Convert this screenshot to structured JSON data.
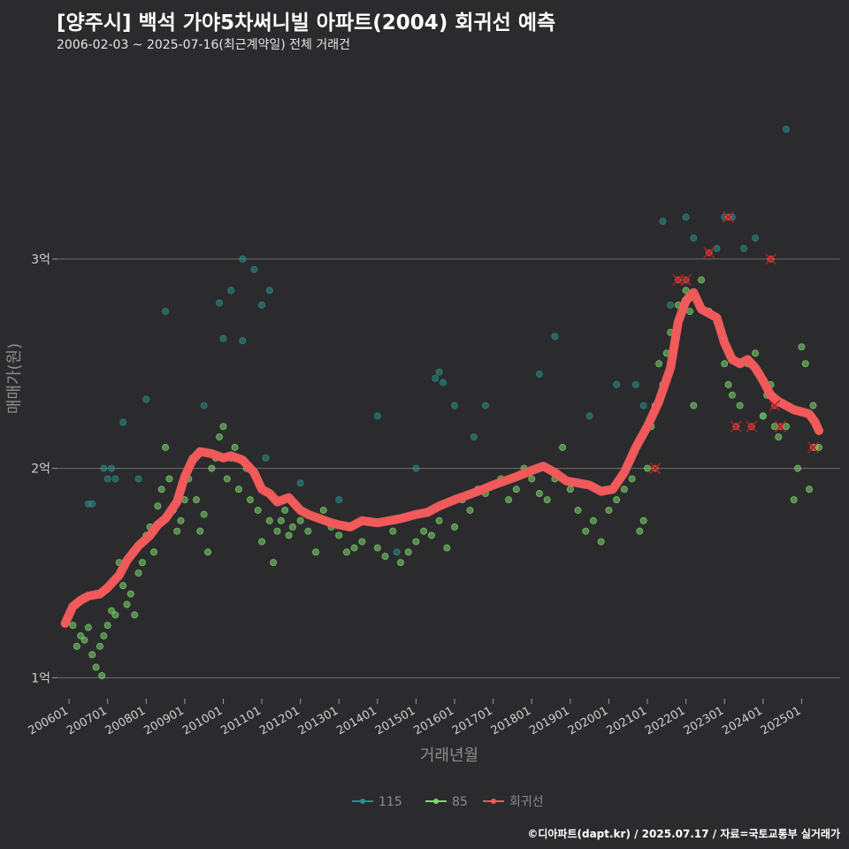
{
  "title": "[양주시] 백석 가야5차써니빌 아파트(2004) 회귀선 예측",
  "subtitle": "2006-02-03 ~ 2025-07-16(최근계약일) 전체 거래건",
  "credit": "©디아파트(dapt.kr) / 2025.07.17 / 자료=국토교통부 실거래가",
  "colors": {
    "s115": "#2a8f8a",
    "s85": "#7dd86e",
    "reg": "#f05a5a",
    "bg": "#2b2b2d",
    "grid": "#6e6e6e"
  },
  "chart_data": {
    "type": "scatter",
    "title": "[양주시] 백석 가야5차써니빌 아파트(2004) 회귀선 예측",
    "xlabel": "거래년월",
    "ylabel": "매매가(원)",
    "ylim": [
      0.9,
      3.95
    ],
    "yticks": [
      {
        "v": 1,
        "label": "1억"
      },
      {
        "v": 2,
        "label": "2억"
      },
      {
        "v": 3,
        "label": "3억"
      }
    ],
    "xlim": [
      2005.7,
      2026.0
    ],
    "xticks": [
      {
        "v": 2006,
        "label": "200601"
      },
      {
        "v": 2007,
        "label": "200701"
      },
      {
        "v": 2008,
        "label": "200801"
      },
      {
        "v": 2009,
        "label": "200901"
      },
      {
        "v": 2010,
        "label": "201001"
      },
      {
        "v": 2011,
        "label": "201101"
      },
      {
        "v": 2012,
        "label": "201201"
      },
      {
        "v": 2013,
        "label": "201301"
      },
      {
        "v": 2014,
        "label": "201401"
      },
      {
        "v": 2015,
        "label": "201501"
      },
      {
        "v": 2016,
        "label": "201601"
      },
      {
        "v": 2017,
        "label": "201701"
      },
      {
        "v": 2018,
        "label": "201801"
      },
      {
        "v": 2019,
        "label": "201901"
      },
      {
        "v": 2020,
        "label": "202001"
      },
      {
        "v": 2021,
        "label": "202101"
      },
      {
        "v": 2022,
        "label": "202201"
      },
      {
        "v": 2023,
        "label": "202301"
      },
      {
        "v": 2024,
        "label": "202401"
      },
      {
        "v": 2025,
        "label": "202501"
      }
    ],
    "legend": [
      {
        "name": "115",
        "color": "#2a8f8a"
      },
      {
        "name": "85",
        "color": "#7dd86e"
      },
      {
        "name": "회귀선",
        "color": "#f05a5a"
      }
    ],
    "series": [
      {
        "name": "115",
        "points": [
          [
            2006.5,
            1.83
          ],
          [
            2006.6,
            1.83
          ],
          [
            2006.9,
            2.0
          ],
          [
            2007.0,
            1.95
          ],
          [
            2007.1,
            2.0
          ],
          [
            2007.2,
            1.95
          ],
          [
            2007.4,
            2.22
          ],
          [
            2007.8,
            1.95
          ],
          [
            2008.0,
            2.33
          ],
          [
            2008.5,
            2.75
          ],
          [
            2009.5,
            2.3
          ],
          [
            2009.9,
            2.79
          ],
          [
            2010.0,
            2.62
          ],
          [
            2010.2,
            2.85
          ],
          [
            2010.5,
            3.0
          ],
          [
            2010.8,
            2.95
          ],
          [
            2010.5,
            2.61
          ],
          [
            2011.0,
            2.78
          ],
          [
            2011.2,
            2.85
          ],
          [
            2011.1,
            2.05
          ],
          [
            2012.0,
            1.93
          ],
          [
            2013.0,
            1.85
          ],
          [
            2014.0,
            2.25
          ],
          [
            2014.5,
            1.6
          ],
          [
            2015.0,
            2.0
          ],
          [
            2015.5,
            2.43
          ],
          [
            2015.6,
            2.46
          ],
          [
            2015.7,
            2.41
          ],
          [
            2016.0,
            2.3
          ],
          [
            2016.5,
            2.15
          ],
          [
            2016.8,
            2.3
          ],
          [
            2018.2,
            2.45
          ],
          [
            2018.6,
            2.63
          ],
          [
            2019.5,
            2.25
          ],
          [
            2020.2,
            2.4
          ],
          [
            2020.7,
            2.4
          ],
          [
            2020.9,
            2.3
          ],
          [
            2021.4,
            3.18
          ],
          [
            2021.6,
            2.78
          ],
          [
            2022.0,
            3.2
          ],
          [
            2022.2,
            3.1
          ],
          [
            2022.8,
            3.05
          ],
          [
            2023.0,
            3.2
          ],
          [
            2023.2,
            3.2
          ],
          [
            2023.5,
            3.05
          ],
          [
            2023.8,
            3.1
          ],
          [
            2024.6,
            3.62
          ],
          [
            2024.0,
            2.25
          ]
        ]
      },
      {
        "name": "85",
        "points": [
          [
            2006.1,
            1.25
          ],
          [
            2006.2,
            1.15
          ],
          [
            2006.3,
            1.2
          ],
          [
            2006.4,
            1.18
          ],
          [
            2006.5,
            1.24
          ],
          [
            2006.6,
            1.11
          ],
          [
            2006.7,
            1.05
          ],
          [
            2006.8,
            1.15
          ],
          [
            2006.85,
            1.01
          ],
          [
            2006.9,
            1.2
          ],
          [
            2007.0,
            1.25
          ],
          [
            2007.1,
            1.32
          ],
          [
            2007.2,
            1.3
          ],
          [
            2007.3,
            1.55
          ],
          [
            2007.4,
            1.44
          ],
          [
            2007.5,
            1.35
          ],
          [
            2007.6,
            1.4
          ],
          [
            2007.7,
            1.3
          ],
          [
            2007.8,
            1.5
          ],
          [
            2007.9,
            1.55
          ],
          [
            2008.0,
            1.68
          ],
          [
            2008.1,
            1.72
          ],
          [
            2008.2,
            1.6
          ],
          [
            2008.3,
            1.82
          ],
          [
            2008.4,
            1.9
          ],
          [
            2008.5,
            2.1
          ],
          [
            2008.6,
            1.95
          ],
          [
            2008.7,
            1.8
          ],
          [
            2008.8,
            1.7
          ],
          [
            2008.9,
            1.75
          ],
          [
            2009.0,
            1.85
          ],
          [
            2009.1,
            1.95
          ],
          [
            2009.2,
            2.05
          ],
          [
            2009.3,
            1.85
          ],
          [
            2009.4,
            1.7
          ],
          [
            2009.5,
            1.78
          ],
          [
            2009.6,
            1.6
          ],
          [
            2009.7,
            2.0
          ],
          [
            2009.8,
            2.05
          ],
          [
            2009.9,
            2.15
          ],
          [
            2010.0,
            2.2
          ],
          [
            2010.1,
            1.95
          ],
          [
            2010.2,
            2.05
          ],
          [
            2010.3,
            2.1
          ],
          [
            2010.4,
            1.9
          ],
          [
            2010.6,
            2.0
          ],
          [
            2010.7,
            1.85
          ],
          [
            2010.9,
            1.8
          ],
          [
            2011.0,
            1.65
          ],
          [
            2011.2,
            1.75
          ],
          [
            2011.3,
            1.55
          ],
          [
            2011.4,
            1.7
          ],
          [
            2011.5,
            1.75
          ],
          [
            2011.6,
            1.8
          ],
          [
            2011.7,
            1.68
          ],
          [
            2011.8,
            1.72
          ],
          [
            2012.0,
            1.75
          ],
          [
            2012.2,
            1.7
          ],
          [
            2012.4,
            1.6
          ],
          [
            2012.6,
            1.8
          ],
          [
            2012.8,
            1.72
          ],
          [
            2013.0,
            1.68
          ],
          [
            2013.2,
            1.6
          ],
          [
            2013.4,
            1.62
          ],
          [
            2013.6,
            1.65
          ],
          [
            2013.8,
            1.75
          ],
          [
            2014.0,
            1.62
          ],
          [
            2014.2,
            1.58
          ],
          [
            2014.4,
            1.7
          ],
          [
            2014.6,
            1.55
          ],
          [
            2014.8,
            1.6
          ],
          [
            2015.0,
            1.65
          ],
          [
            2015.2,
            1.7
          ],
          [
            2015.4,
            1.68
          ],
          [
            2015.6,
            1.75
          ],
          [
            2015.8,
            1.62
          ],
          [
            2016.0,
            1.72
          ],
          [
            2016.2,
            1.85
          ],
          [
            2016.4,
            1.8
          ],
          [
            2016.6,
            1.9
          ],
          [
            2016.8,
            1.88
          ],
          [
            2017.0,
            1.92
          ],
          [
            2017.2,
            1.95
          ],
          [
            2017.4,
            1.85
          ],
          [
            2017.6,
            1.9
          ],
          [
            2017.8,
            2.0
          ],
          [
            2018.0,
            1.95
          ],
          [
            2018.2,
            1.88
          ],
          [
            2018.4,
            1.85
          ],
          [
            2018.6,
            1.95
          ],
          [
            2018.8,
            2.1
          ],
          [
            2019.0,
            1.9
          ],
          [
            2019.2,
            1.8
          ],
          [
            2019.4,
            1.7
          ],
          [
            2019.6,
            1.75
          ],
          [
            2019.8,
            1.65
          ],
          [
            2020.0,
            1.8
          ],
          [
            2020.2,
            1.85
          ],
          [
            2020.4,
            1.9
          ],
          [
            2020.6,
            1.95
          ],
          [
            2020.8,
            1.7
          ],
          [
            2020.9,
            1.75
          ],
          [
            2021.0,
            2.0
          ],
          [
            2021.1,
            2.2
          ],
          [
            2021.2,
            2.3
          ],
          [
            2021.3,
            2.5
          ],
          [
            2021.4,
            2.4
          ],
          [
            2021.5,
            2.55
          ],
          [
            2021.6,
            2.65
          ],
          [
            2021.8,
            2.78
          ],
          [
            2022.0,
            2.85
          ],
          [
            2022.1,
            2.75
          ],
          [
            2022.2,
            2.3
          ],
          [
            2022.4,
            2.9
          ],
          [
            2022.6,
            2.75
          ],
          [
            2022.8,
            2.7
          ],
          [
            2023.0,
            2.5
          ],
          [
            2023.1,
            2.4
          ],
          [
            2023.2,
            2.35
          ],
          [
            2023.4,
            2.3
          ],
          [
            2023.6,
            2.5
          ],
          [
            2023.8,
            2.55
          ],
          [
            2024.0,
            2.25
          ],
          [
            2024.1,
            2.35
          ],
          [
            2024.2,
            2.4
          ],
          [
            2024.3,
            2.2
          ],
          [
            2024.4,
            2.15
          ],
          [
            2024.6,
            2.2
          ],
          [
            2024.8,
            1.85
          ],
          [
            2024.9,
            2.0
          ],
          [
            2025.0,
            2.58
          ],
          [
            2025.1,
            2.5
          ],
          [
            2025.2,
            1.9
          ],
          [
            2025.3,
            2.3
          ],
          [
            2025.35,
            2.1
          ],
          [
            2025.45,
            2.1
          ]
        ]
      }
    ],
    "regression_points": [
      [
        2021.2,
        2.0
      ],
      [
        2021.8,
        2.9
      ],
      [
        2022.0,
        2.9
      ],
      [
        2022.6,
        3.03
      ],
      [
        2023.1,
        3.2
      ],
      [
        2023.3,
        2.2
      ],
      [
        2023.7,
        2.2
      ],
      [
        2024.2,
        3.0
      ],
      [
        2024.3,
        2.3
      ],
      [
        2024.45,
        2.2
      ],
      [
        2025.3,
        2.1
      ]
    ],
    "regression_line": [
      [
        2005.9,
        1.26
      ],
      [
        2006.1,
        1.34
      ],
      [
        2006.3,
        1.37
      ],
      [
        2006.5,
        1.39
      ],
      [
        2006.8,
        1.4
      ],
      [
        2007.0,
        1.43
      ],
      [
        2007.3,
        1.49
      ],
      [
        2007.5,
        1.56
      ],
      [
        2007.8,
        1.63
      ],
      [
        2008.1,
        1.68
      ],
      [
        2008.3,
        1.73
      ],
      [
        2008.5,
        1.76
      ],
      [
        2008.8,
        1.84
      ],
      [
        2009.0,
        1.96
      ],
      [
        2009.2,
        2.04
      ],
      [
        2009.4,
        2.08
      ],
      [
        2009.7,
        2.07
      ],
      [
        2010.0,
        2.05
      ],
      [
        2010.2,
        2.06
      ],
      [
        2010.5,
        2.04
      ],
      [
        2010.8,
        1.98
      ],
      [
        2011.0,
        1.9
      ],
      [
        2011.2,
        1.88
      ],
      [
        2011.4,
        1.84
      ],
      [
        2011.7,
        1.86
      ],
      [
        2012.0,
        1.8
      ],
      [
        2012.2,
        1.78
      ],
      [
        2012.5,
        1.76
      ],
      [
        2012.8,
        1.74
      ],
      [
        2013.0,
        1.73
      ],
      [
        2013.3,
        1.72
      ],
      [
        2013.6,
        1.75
      ],
      [
        2014.0,
        1.74
      ],
      [
        2014.3,
        1.75
      ],
      [
        2014.6,
        1.76
      ],
      [
        2015.0,
        1.78
      ],
      [
        2015.3,
        1.79
      ],
      [
        2015.6,
        1.82
      ],
      [
        2016.0,
        1.85
      ],
      [
        2016.3,
        1.87
      ],
      [
        2016.6,
        1.89
      ],
      [
        2017.0,
        1.92
      ],
      [
        2017.3,
        1.94
      ],
      [
        2017.6,
        1.96
      ],
      [
        2018.0,
        1.99
      ],
      [
        2018.3,
        2.01
      ],
      [
        2018.6,
        1.98
      ],
      [
        2018.9,
        1.94
      ],
      [
        2019.2,
        1.93
      ],
      [
        2019.5,
        1.92
      ],
      [
        2019.8,
        1.89
      ],
      [
        2020.1,
        1.9
      ],
      [
        2020.4,
        1.98
      ],
      [
        2020.7,
        2.1
      ],
      [
        2021.0,
        2.2
      ],
      [
        2021.3,
        2.32
      ],
      [
        2021.6,
        2.48
      ],
      [
        2021.8,
        2.7
      ],
      [
        2022.0,
        2.8
      ],
      [
        2022.2,
        2.84
      ],
      [
        2022.4,
        2.76
      ],
      [
        2022.6,
        2.74
      ],
      [
        2022.8,
        2.72
      ],
      [
        2023.0,
        2.6
      ],
      [
        2023.2,
        2.52
      ],
      [
        2023.4,
        2.5
      ],
      [
        2023.6,
        2.52
      ],
      [
        2023.8,
        2.48
      ],
      [
        2024.0,
        2.42
      ],
      [
        2024.2,
        2.35
      ],
      [
        2024.4,
        2.32
      ],
      [
        2024.6,
        2.3
      ],
      [
        2024.8,
        2.28
      ],
      [
        2025.0,
        2.27
      ],
      [
        2025.2,
        2.26
      ],
      [
        2025.35,
        2.22
      ],
      [
        2025.45,
        2.18
      ]
    ]
  }
}
